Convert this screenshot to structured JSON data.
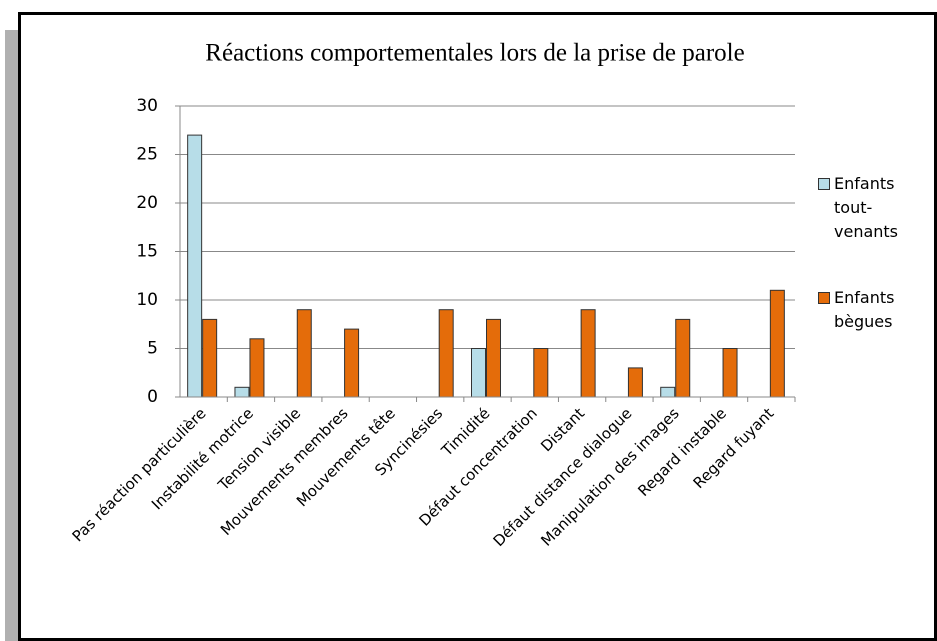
{
  "chart_data": {
    "type": "bar",
    "title": "Réactions comportementales lors de la prise de parole",
    "categories": [
      "Pas réaction particulière",
      "Instabilité motrice",
      "Tension visible",
      "Mouvements membres",
      "Mouvements tête",
      "Syncinésies",
      "Timidité",
      "Défaut concentration",
      "Distant",
      "Défaut distance dialogue",
      "Manipulation des images",
      "Regard instable",
      "Regard fuyant"
    ],
    "series": [
      {
        "name": "Enfants tout-venants",
        "color": "#b7dde8",
        "values": [
          27,
          1,
          0,
          0,
          0,
          0,
          5,
          0,
          0,
          0,
          1,
          0,
          0
        ]
      },
      {
        "name": "Enfants bègues",
        "color": "#e46c0a",
        "values": [
          8,
          6,
          9,
          7,
          0,
          9,
          8,
          5,
          9,
          3,
          8,
          5,
          11
        ]
      }
    ],
    "ylim": [
      0,
      30
    ],
    "yticks": [
      0,
      5,
      10,
      15,
      20,
      25,
      30
    ],
    "grid": true,
    "legend": "right"
  }
}
